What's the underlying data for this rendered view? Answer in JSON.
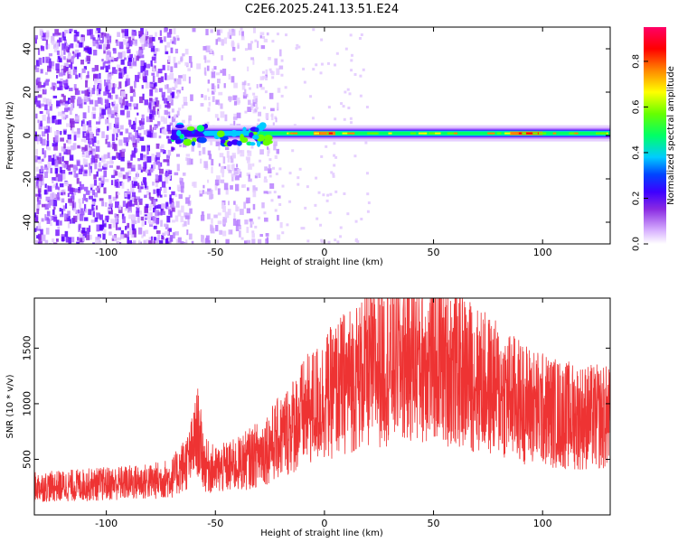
{
  "title": "C2E6.2025.241.13.51.E24",
  "chart_data": [
    {
      "type": "heatmap",
      "xlabel": "Height of straight line (km)",
      "ylabel": "Frequency (Hz)",
      "xlim": [
        -133,
        131
      ],
      "ylim": [
        -50,
        50
      ],
      "xticks": [
        -100,
        -50,
        0,
        50,
        100
      ],
      "yticks": [
        -40,
        -20,
        0,
        20,
        40
      ],
      "colorbar": {
        "label": "Normalized spectral amplitude",
        "range": [
          0,
          0.95
        ],
        "ticks": [
          0.0,
          0.2,
          0.4,
          0.6,
          0.8
        ],
        "colors": [
          "#ffffff",
          "#d9b3ff",
          "#8a2be2",
          "#3d00ff",
          "#0044ff",
          "#00ccff",
          "#00ff66",
          "#66ff00",
          "#ffff00",
          "#ff8800",
          "#ff0000",
          "#ff0066"
        ]
      },
      "features": {
        "noise_region_km": [
          -133,
          -30
        ],
        "noise_gap_km": [
          -62,
          -57
        ],
        "echo_line_frequency_hz": 1,
        "echo_line_km": [
          -70,
          131
        ],
        "echo_peak_km": [
          [
            -5,
            5
          ],
          [
            85,
            100
          ]
        ]
      },
      "grid": false
    },
    {
      "type": "line",
      "xlabel": "Height of straight line (km)",
      "ylabel": "SNR (10 * v/v)",
      "xlim": [
        -133,
        131
      ],
      "ylim": [
        0,
        1950
      ],
      "xticks": [
        -100,
        -50,
        0,
        50,
        100
      ],
      "yticks": [
        500,
        1000,
        1500
      ],
      "color": "#ee3333",
      "x": [
        -133,
        -120,
        -100,
        -80,
        -70,
        -62,
        -58,
        -55,
        -50,
        -40,
        -30,
        -20,
        -10,
        0,
        10,
        20,
        30,
        40,
        50,
        60,
        70,
        80,
        90,
        100,
        110,
        120,
        131
      ],
      "y": [
        250,
        260,
        280,
        300,
        330,
        500,
        750,
        450,
        400,
        450,
        550,
        700,
        900,
        1050,
        1200,
        1300,
        1380,
        1420,
        1400,
        1330,
        1220,
        1120,
        1020,
        950,
        900,
        880,
        870
      ],
      "grid": false
    }
  ]
}
